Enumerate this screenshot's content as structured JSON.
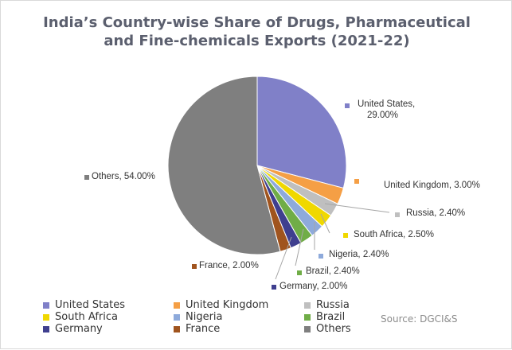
{
  "chart_data": {
    "type": "pie",
    "title_line1": "India’s Country-wise Share of Drugs, Pharmaceutical",
    "title_line2": "and Fine-chemicals Exports (2021-22)",
    "slices": [
      {
        "name": "United States",
        "value": 29.0,
        "label": "United States,",
        "label2": "29.00%",
        "color": "#8080c8"
      },
      {
        "name": "United Kingdom",
        "value": 3.0,
        "label": "United Kingdom, 3.00%",
        "color": "#f59f45"
      },
      {
        "name": "Russia",
        "value": 2.4,
        "label": "Russia, 2.40%",
        "color": "#bfbfbf"
      },
      {
        "name": "South Africa",
        "value": 2.5,
        "label": "South Africa, 2.50%",
        "color": "#f0d800"
      },
      {
        "name": "Nigeria",
        "value": 2.4,
        "label": "Nigeria, 2.40%",
        "color": "#8eaadb"
      },
      {
        "name": "Brazil",
        "value": 2.4,
        "label": "Brazil, 2.40%",
        "color": "#70ad47"
      },
      {
        "name": "Germany",
        "value": 2.0,
        "label": "Germany, 2.00%",
        "color": "#3f3f8f"
      },
      {
        "name": "France",
        "value": 2.0,
        "label": "France, 2.00%",
        "color": "#a0541e"
      },
      {
        "name": "Others",
        "value": 54.0,
        "label": "Others, 54.00%",
        "color": "#7f7f7f"
      }
    ],
    "legend": [
      "United States",
      "United Kingdom",
      "Russia",
      "South Africa",
      "Nigeria",
      "Brazil",
      "Germany",
      "France",
      "Others"
    ],
    "legend_position": "bottom",
    "source": "Source: DGCI&S"
  }
}
